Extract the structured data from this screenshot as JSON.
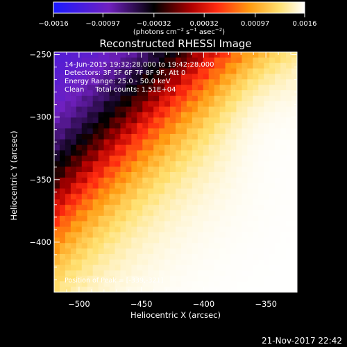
{
  "colorbar": {
    "ticks": [
      "-0.0016",
      "-0.00097",
      "-0.00032",
      "0.00032",
      "0.00097",
      "0.0016"
    ],
    "range": [
      -0.0016,
      0.0016
    ],
    "unit_label": "(photons cm",
    "unit_sup1": "−2",
    "unit_mid": " s",
    "unit_sup2": "−1",
    "unit_mid2": " asec",
    "unit_sup3": "−2",
    "unit_end": ")",
    "colormap": [
      "#1a1aff",
      "#7a20c0",
      "#000000",
      "#b00000",
      "#ff2020",
      "#ff8000",
      "#ffd040",
      "#ffffff"
    ]
  },
  "chart_data": {
    "type": "heatmap",
    "title": "Reconstructed RHESSI Image",
    "xlabel": "Heliocentric X (arcsec)",
    "ylabel": "Heliocentric Y (arcsec)",
    "xlim": [
      -520,
      -325
    ],
    "ylim": [
      -440,
      -248
    ],
    "xticks": [
      -500,
      -450,
      -400,
      -350
    ],
    "yticks": [
      -250,
      -300,
      -350,
      -400
    ],
    "xtick_labels": [
      "−500",
      "−450",
      "−400",
      "−350"
    ],
    "ytick_labels": [
      "−250",
      "−300",
      "−350",
      "−400"
    ],
    "annotations": [
      "14-Jun-2015 19:32:28.000 to 19:42:28.000",
      "Detectors: 3F 5F 6F 7F 8F 9F, Att 0",
      "Energy Range: 25.0 - 50.0 keV",
      "Clean     Total counts: 1.51E+04"
    ],
    "peak_label": "Position of Peak = [-339,-321]",
    "peak_position": [
      -339,
      -321
    ],
    "description_of_field": "Diagonal gradient: negative (blue/purple) at upper-left, rising through black and red to saturated yellow/white toward lower-right, with a bright maximum near the right edge."
  },
  "footer": {
    "date": "21-Nov-2017 22:42"
  }
}
